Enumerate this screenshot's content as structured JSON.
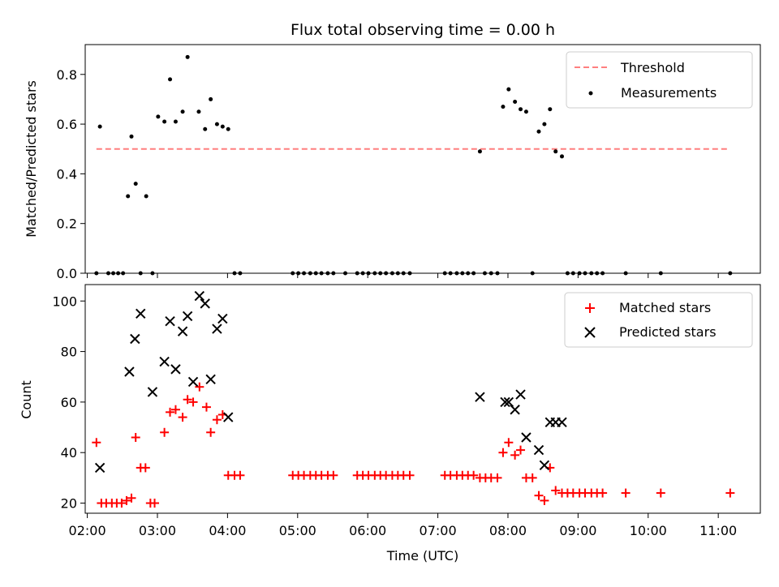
{
  "chart_data": [
    {
      "type": "scatter",
      "title": "Flux total observing time = 0.00 h",
      "xlabel": "",
      "ylabel": "Matched/Predicted stars",
      "ylim": [
        0,
        0.92
      ],
      "yticks": [
        "0.0",
        "0.2",
        "0.4",
        "0.6",
        "0.8"
      ],
      "ytick_values": [
        0,
        0.2,
        0.4,
        0.6,
        0.8
      ],
      "x_unit": "hours UTC",
      "xlim": [
        1.97,
        11.6
      ],
      "legend_placement": "upper right",
      "threshold": {
        "name": "Threshold",
        "value": 0.5,
        "x_range": [
          2.13,
          11.15
        ],
        "color": "#ff7f7f",
        "style": "dashed"
      },
      "series": [
        {
          "name": "Measurements",
          "color": "#000000",
          "marker": "dot",
          "x": [
            2.13,
            2.18,
            2.3,
            2.37,
            2.44,
            2.51,
            2.58,
            2.63,
            2.69,
            2.76,
            2.84,
            2.93,
            3.01,
            3.1,
            3.18,
            3.26,
            3.36,
            3.43,
            3.59,
            3.68,
            3.76,
            3.85,
            3.93,
            4.01,
            4.1,
            4.18,
            4.93,
            5.01,
            5.09,
            5.18,
            5.26,
            5.34,
            5.43,
            5.51,
            5.68,
            5.85,
            5.93,
            6.01,
            6.1,
            6.18,
            6.26,
            6.35,
            6.43,
            6.51,
            6.6,
            7.1,
            7.18,
            7.27,
            7.35,
            7.43,
            7.51,
            7.6,
            7.67,
            7.76,
            7.85,
            7.93,
            8.01,
            8.1,
            8.18,
            8.26,
            8.35,
            8.44,
            8.52,
            8.6,
            8.68,
            8.77,
            8.85,
            8.93,
            9.02,
            9.1,
            9.19,
            9.27,
            9.35,
            9.68,
            10.18,
            11.17
          ],
          "y": [
            0,
            0.59,
            0,
            0,
            0,
            0,
            0.31,
            0.55,
            0.36,
            0,
            0.31,
            0,
            0.63,
            0.61,
            0.78,
            0.61,
            0.65,
            0.87,
            0.65,
            0.58,
            0.7,
            0.6,
            0.59,
            0.58,
            0,
            0,
            0,
            0,
            0,
            0,
            0,
            0,
            0,
            0,
            0,
            0,
            0,
            0,
            0,
            0,
            0,
            0,
            0,
            0,
            0,
            0,
            0,
            0,
            0,
            0,
            0,
            0.49,
            0,
            0,
            0,
            0.67,
            0.74,
            0.69,
            0.66,
            0.65,
            0,
            0.57,
            0.6,
            0.66,
            0.49,
            0.47,
            0,
            0,
            0,
            0,
            0,
            0,
            0,
            0,
            0,
            0
          ]
        }
      ]
    },
    {
      "type": "scatter",
      "title": "",
      "xlabel": "Time (UTC)",
      "ylabel": "Count",
      "ylim": [
        16,
        106.5
      ],
      "yticks": [
        "20",
        "40",
        "60",
        "80",
        "100"
      ],
      "ytick_values": [
        20,
        40,
        60,
        80,
        100
      ],
      "xticks": [
        "02:00",
        "03:00",
        "04:00",
        "05:00",
        "06:00",
        "07:00",
        "08:00",
        "09:00",
        "10:00",
        "11:00"
      ],
      "xtick_values": [
        2,
        3,
        4,
        5,
        6,
        7,
        8,
        9,
        10,
        11
      ],
      "xlim": [
        1.97,
        11.6
      ],
      "legend_placement": "upper right",
      "series": [
        {
          "name": "Matched stars",
          "color": "#ff0000",
          "marker": "plus",
          "x": [
            2.13,
            2.2,
            2.27,
            2.35,
            2.42,
            2.49,
            2.56,
            2.63,
            2.69,
            2.76,
            2.83,
            2.9,
            2.96,
            3.1,
            3.18,
            3.26,
            3.36,
            3.43,
            3.51,
            3.6,
            3.7,
            3.76,
            3.85,
            3.93,
            4.01,
            4.1,
            4.18,
            4.93,
            5.01,
            5.09,
            5.18,
            5.26,
            5.34,
            5.43,
            5.51,
            5.85,
            5.93,
            6.01,
            6.1,
            6.18,
            6.26,
            6.35,
            6.43,
            6.51,
            6.6,
            7.1,
            7.18,
            7.27,
            7.35,
            7.43,
            7.51,
            7.6,
            7.68,
            7.76,
            7.85,
            7.93,
            8.01,
            8.1,
            8.18,
            8.26,
            8.35,
            8.44,
            8.52,
            8.6,
            8.68,
            8.77,
            8.85,
            8.93,
            9.02,
            9.1,
            9.19,
            9.27,
            9.35,
            9.68,
            10.18,
            11.17
          ],
          "y": [
            44,
            20,
            20,
            20,
            20,
            20,
            21,
            22,
            46,
            34,
            34,
            20,
            20,
            48,
            56,
            57,
            54,
            61,
            60,
            66,
            58,
            48,
            53,
            55,
            31,
            31,
            31,
            31,
            31,
            31,
            31,
            31,
            31,
            31,
            31,
            31,
            31,
            31,
            31,
            31,
            31,
            31,
            31,
            31,
            31,
            31,
            31,
            31,
            31,
            31,
            31,
            30,
            30,
            30,
            30,
            40,
            44,
            39,
            41,
            30,
            30,
            23,
            21,
            34,
            25,
            24,
            24,
            24,
            24,
            24,
            24,
            24,
            24,
            24,
            24,
            24
          ]
        },
        {
          "name": "Predicted stars",
          "color": "#000000",
          "marker": "cross",
          "x": [
            2.18,
            2.6,
            2.68,
            2.76,
            2.93,
            3.1,
            3.18,
            3.26,
            3.36,
            3.43,
            3.51,
            3.6,
            3.68,
            3.76,
            3.85,
            3.93,
            4.01,
            7.6,
            7.96,
            8.01,
            8.1,
            8.18,
            8.26,
            8.44,
            8.52,
            8.6,
            8.68,
            8.77
          ],
          "y": [
            34,
            72,
            85,
            95,
            64,
            76,
            92,
            73,
            88,
            94,
            68,
            102,
            99,
            69,
            89,
            93,
            54,
            62,
            60,
            60,
            57,
            63,
            46,
            41,
            35,
            52,
            52,
            52
          ]
        }
      ]
    }
  ]
}
